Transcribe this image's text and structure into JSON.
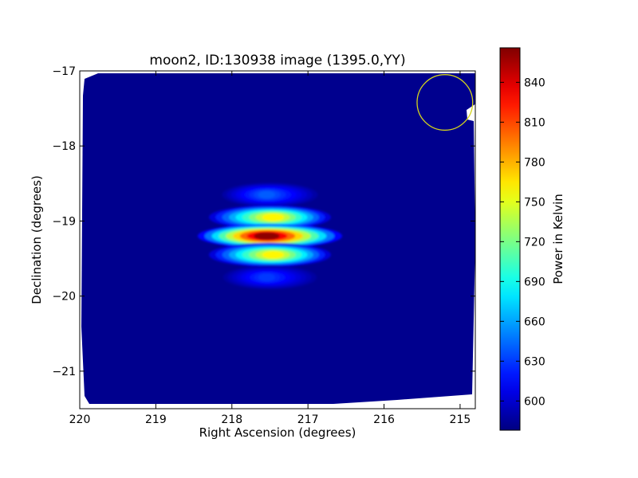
{
  "chart_data": {
    "type": "heatmap",
    "title": "moon2, ID:130938 image (1395.0,YY)",
    "xlabel": "Right Ascension (degrees)",
    "ylabel": "Declination (degrees)",
    "xlim": [
      220,
      214.8
    ],
    "ylim": [
      -21.5,
      -17
    ],
    "x_ticks": [
      220,
      219,
      218,
      217,
      216,
      215
    ],
    "x_tick_labels": [
      "220",
      "219",
      "218",
      "217",
      "216",
      "215"
    ],
    "y_ticks": [
      -17,
      -18,
      -19,
      -20,
      -21
    ],
    "y_tick_labels": [
      "−17",
      "−18",
      "−19",
      "−20",
      "−21"
    ],
    "grid": false,
    "colormap": "jet",
    "background_level": 582,
    "source": {
      "center_ra": 217.5,
      "center_dec": -19.2,
      "peak_value": 862,
      "fringe_bands_dec": [
        -18.65,
        -18.95,
        -19.2,
        -19.45,
        -19.75
      ],
      "fringe_band_peaks": [
        640,
        760,
        862,
        760,
        630
      ]
    },
    "circle_annotation": {
      "ra": 215.2,
      "dec": -17.42,
      "radius_deg": 0.37,
      "color": "#d4d41c"
    },
    "colorbar": {
      "label": "Power in Kelvin",
      "vmin": 578,
      "vmax": 866,
      "ticks": [
        600,
        630,
        660,
        690,
        720,
        750,
        780,
        810,
        840
      ],
      "tick_labels": [
        "600",
        "630",
        "660",
        "690",
        "720",
        "750",
        "780",
        "810",
        "840"
      ]
    }
  }
}
